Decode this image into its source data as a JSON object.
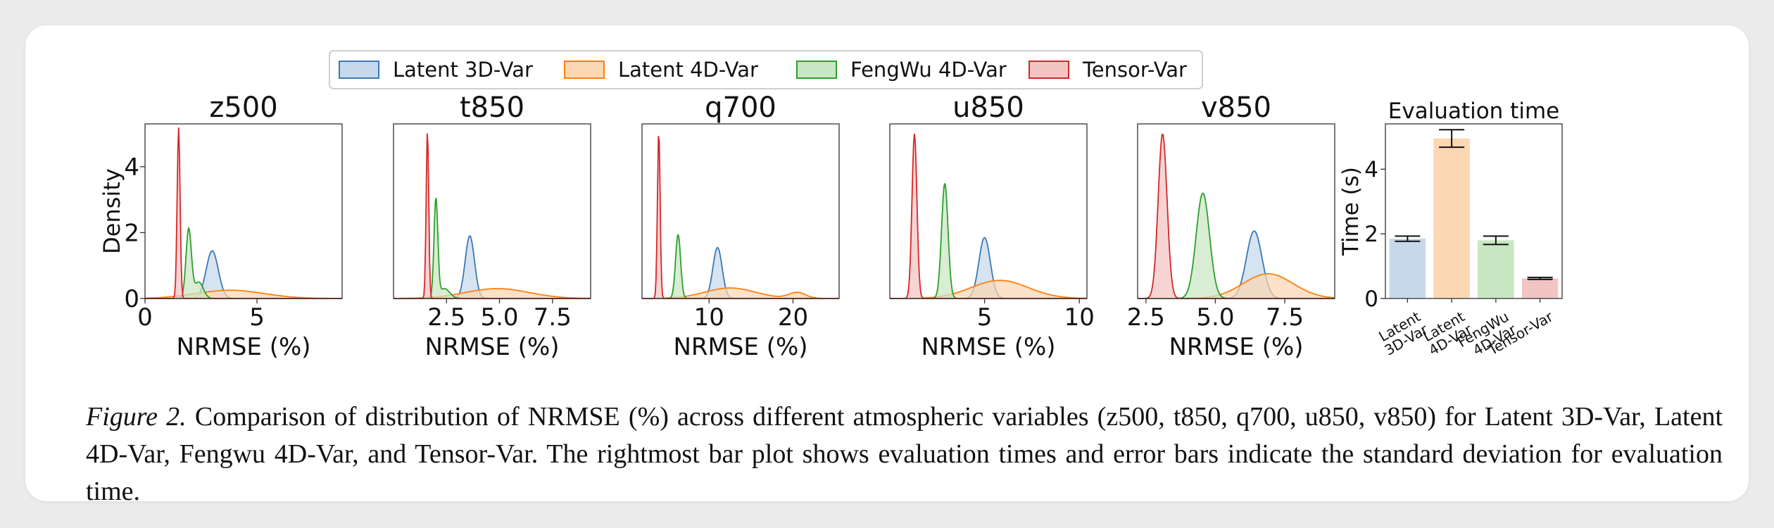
{
  "legend": [
    {
      "label": "Latent 3D-Var",
      "fill": "#c6d9ec",
      "stroke": "#3c78b4"
    },
    {
      "label": "Latent 4D-Var",
      "fill": "#fcd7b3",
      "stroke": "#ff7f0e"
    },
    {
      "label": "FengWu 4D-Var",
      "fill": "#c9e6c2",
      "stroke": "#2ca02c"
    },
    {
      "label": "Tensor-Var",
      "fill": "#f2c4c4",
      "stroke": "#d62728"
    }
  ],
  "chart_data": [
    {
      "type": "area",
      "title": "z500",
      "xlabel": "NRMSE (%)",
      "ylabel": "Density",
      "xlim": [
        0,
        8.8
      ],
      "ylim": [
        0,
        5.3
      ],
      "xticks": [
        {
          "v": 0,
          "label": "0"
        },
        {
          "v": 5,
          "label": "5"
        }
      ],
      "yticks": [
        {
          "v": 0,
          "label": "0"
        },
        {
          "v": 2,
          "label": "2"
        },
        {
          "v": 4,
          "label": "4"
        }
      ],
      "series": [
        {
          "name": "Latent 3D-Var",
          "peaks": [
            {
              "mu": 3.0,
              "sigma": 0.27,
              "h": 1.45
            }
          ]
        },
        {
          "name": "Latent 4D-Var",
          "peaks": [
            {
              "mu": 3.8,
              "sigma": 1.5,
              "h": 0.25
            }
          ]
        },
        {
          "name": "FengWu 4D-Var",
          "peaks": [
            {
              "mu": 1.95,
              "sigma": 0.12,
              "h": 2.1
            },
            {
              "mu": 2.4,
              "sigma": 0.2,
              "h": 0.5
            }
          ]
        },
        {
          "name": "Tensor-Var",
          "peaks": [
            {
              "mu": 1.5,
              "sigma": 0.065,
              "h": 5.2
            }
          ]
        }
      ]
    },
    {
      "type": "area",
      "title": "t850",
      "xlabel": "NRMSE (%)",
      "ylabel": "",
      "xlim": [
        0,
        9.3
      ],
      "ylim": [
        0,
        5.3
      ],
      "xticks": [
        {
          "v": 2.5,
          "label": "2.5"
        },
        {
          "v": 5.0,
          "label": "5.0"
        },
        {
          "v": 7.5,
          "label": "7.5"
        }
      ],
      "yticks": [],
      "series": [
        {
          "name": "Latent 3D-Var",
          "peaks": [
            {
              "mu": 3.6,
              "sigma": 0.22,
              "h": 1.9
            }
          ]
        },
        {
          "name": "Latent 4D-Var",
          "peaks": [
            {
              "mu": 4.9,
              "sigma": 1.5,
              "h": 0.3
            }
          ]
        },
        {
          "name": "FengWu 4D-Var",
          "peaks": [
            {
              "mu": 2.0,
              "sigma": 0.09,
              "h": 3.0
            },
            {
              "mu": 2.4,
              "sigma": 0.25,
              "h": 0.3
            }
          ]
        },
        {
          "name": "Tensor-Var",
          "peaks": [
            {
              "mu": 1.6,
              "sigma": 0.06,
              "h": 5.1
            }
          ]
        }
      ]
    },
    {
      "type": "area",
      "title": "q700",
      "xlabel": "NRMSE (%)",
      "ylabel": "",
      "xlim": [
        2,
        25.5
      ],
      "ylim": [
        0,
        5.3
      ],
      "xticks": [
        {
          "v": 10,
          "label": "10"
        },
        {
          "v": 20,
          "label": "20"
        }
      ],
      "yticks": [],
      "series": [
        {
          "name": "Latent 3D-Var",
          "peaks": [
            {
              "mu": 11.0,
              "sigma": 0.55,
              "h": 1.55
            }
          ]
        },
        {
          "name": "Latent 4D-Var",
          "peaks": [
            {
              "mu": 12.5,
              "sigma": 3.0,
              "h": 0.32
            },
            {
              "mu": 20.5,
              "sigma": 1.0,
              "h": 0.18
            }
          ]
        },
        {
          "name": "FengWu 4D-Var",
          "peaks": [
            {
              "mu": 6.3,
              "sigma": 0.3,
              "h": 1.95
            }
          ]
        },
        {
          "name": "Tensor-Var",
          "peaks": [
            {
              "mu": 4.0,
              "sigma": 0.16,
              "h": 5.1
            }
          ]
        }
      ]
    },
    {
      "type": "area",
      "title": "u850",
      "xlabel": "NRMSE (%)",
      "ylabel": "",
      "xlim": [
        0,
        10.4
      ],
      "ylim": [
        0,
        5.3
      ],
      "xticks": [
        {
          "v": 5,
          "label": "5"
        },
        {
          "v": 10,
          "label": "10"
        }
      ],
      "yticks": [],
      "series": [
        {
          "name": "Latent 3D-Var",
          "peaks": [
            {
              "mu": 5.0,
              "sigma": 0.3,
              "h": 1.85
            }
          ]
        },
        {
          "name": "Latent 4D-Var",
          "peaks": [
            {
              "mu": 5.8,
              "sigma": 1.5,
              "h": 0.55
            }
          ]
        },
        {
          "name": "FengWu 4D-Var",
          "peaks": [
            {
              "mu": 2.9,
              "sigma": 0.17,
              "h": 3.5
            }
          ]
        },
        {
          "name": "Tensor-Var",
          "peaks": [
            {
              "mu": 1.3,
              "sigma": 0.13,
              "h": 5.0
            }
          ]
        }
      ]
    },
    {
      "type": "area",
      "title": "v850",
      "xlabel": "NRMSE (%)",
      "ylabel": "",
      "xlim": [
        2.2,
        9.3
      ],
      "ylim": [
        0,
        5.3
      ],
      "xticks": [
        {
          "v": 2.5,
          "label": "2.5"
        },
        {
          "v": 5.0,
          "label": "5.0"
        },
        {
          "v": 7.5,
          "label": "7.5"
        }
      ],
      "yticks": [],
      "series": [
        {
          "name": "Latent 3D-Var",
          "peaks": [
            {
              "mu": 6.4,
              "sigma": 0.28,
              "h": 2.05
            }
          ]
        },
        {
          "name": "Latent 4D-Var",
          "peaks": [
            {
              "mu": 6.9,
              "sigma": 0.9,
              "h": 0.75
            }
          ]
        },
        {
          "name": "FengWu 4D-Var",
          "peaks": [
            {
              "mu": 4.55,
              "sigma": 0.24,
              "h": 3.2
            }
          ]
        },
        {
          "name": "Tensor-Var",
          "peaks": [
            {
              "mu": 3.1,
              "sigma": 0.16,
              "h": 5.0
            }
          ]
        }
      ]
    },
    {
      "type": "bar",
      "title": "Evaluation time",
      "xlabel": "",
      "ylabel": "Time (s)",
      "ylim": [
        0,
        5.4
      ],
      "yticks": [
        {
          "v": 0,
          "label": "0"
        },
        {
          "v": 2,
          "label": "2"
        },
        {
          "v": 4,
          "label": "4"
        }
      ],
      "categories": [
        {
          "line1": "Latent",
          "line2": "3D-Var"
        },
        {
          "line1": "Latent",
          "line2": "4D-Var"
        },
        {
          "line1": "FengWu",
          "line2": "4D-Var"
        },
        {
          "line1": "",
          "line2": "Tensor-Var"
        }
      ],
      "values": [
        1.85,
        4.95,
        1.8,
        0.62
      ],
      "errors": [
        0.08,
        0.27,
        0.13,
        0.03
      ]
    }
  ],
  "caption": {
    "label": "Figure 2.",
    "text": " Comparison of distribution of NRMSE (%) across different atmospheric variables (z500, t850, q700, u850, v850) for Latent 3D-Var, Latent 4D-Var, Fengwu 4D-Var, and Tensor-Var.  The rightmost bar plot shows evaluation times and error bars indicate the standard deviation for evaluation time."
  }
}
